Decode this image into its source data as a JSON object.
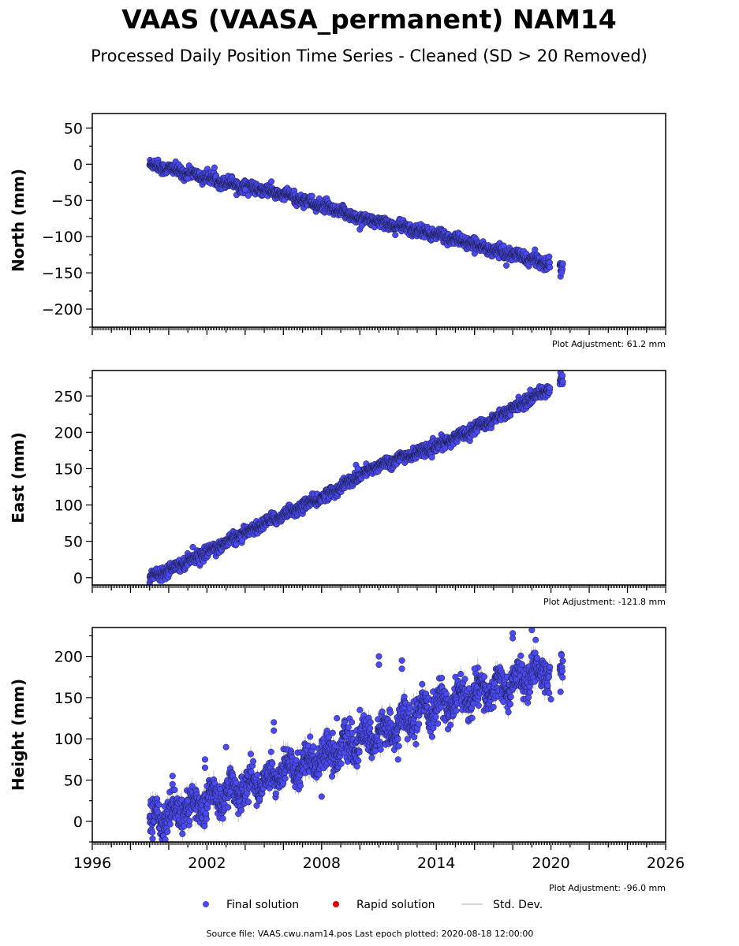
{
  "title": "VAAS (VAASA_permanent) NAM14",
  "subtitle": "Processed Daily Position Time Series - Cleaned (SD > 20 Removed)",
  "footer": "Source file: VAAS.cwu.nam14.pos  Last epoch plotted: 2020-08-18 12:00:00",
  "legend": [
    {
      "label": "Final solution",
      "color": "#4a4af0",
      "kind": "dot"
    },
    {
      "label": "Rapid solution",
      "color": "#dd0000",
      "kind": "dot"
    },
    {
      "label": "Std. Dev.",
      "color": "#c8c8c8",
      "kind": "line"
    }
  ],
  "colors": {
    "final": "#4a4af0",
    "edge": "#1a1a40",
    "std": "#bbbbbb"
  },
  "chart_data": [
    {
      "type": "scatter",
      "ylabel": "North (mm)",
      "xlim": [
        1996,
        2026
      ],
      "ylim": [
        -225,
        70
      ],
      "yticks": [
        50,
        0,
        -50,
        -100,
        -150,
        -200
      ],
      "ytick_labels": [
        "50",
        "0",
        "−50",
        "−100",
        "−150",
        "−200"
      ],
      "xticks": [
        1996,
        2002,
        2008,
        2014,
        2020,
        2026
      ],
      "xtick_labels": [],
      "adjustment": "Plot Adjustment: 61.2 mm",
      "series": [
        {
          "data_start": 1999.0,
          "data_end": 2020.63,
          "trend": [
            [
              1999.0,
              0
            ],
            [
              2003.0,
              -25
            ],
            [
              2006.5,
              -45
            ],
            [
              2009.8,
              -73
            ],
            [
              2014.0,
              -97
            ],
            [
              2017.5,
              -122
            ],
            [
              2020.0,
              -138
            ],
            [
              2020.63,
              -143
            ]
          ],
          "scatter": 4,
          "seasonal": 2,
          "std": 2,
          "outliers": [
            [
              2010.0,
              -90
            ],
            [
              2010.1,
              -85
            ],
            [
              2001.0,
              -20
            ],
            [
              2004.0,
              -35
            ],
            [
              2020.5,
              -155
            ],
            [
              2020.55,
              -150
            ]
          ]
        }
      ]
    },
    {
      "type": "scatter",
      "ylabel": "East (mm)",
      "xlim": [
        1996,
        2026
      ],
      "ylim": [
        -10,
        285
      ],
      "yticks": [
        250,
        200,
        150,
        100,
        50,
        0
      ],
      "ytick_labels": [
        "250",
        "200",
        "150",
        "100",
        "50",
        "0"
      ],
      "xticks": [
        1996,
        2002,
        2008,
        2014,
        2020,
        2026
      ],
      "xtick_labels": [],
      "adjustment": "Plot Adjustment: -121.8 mm",
      "series": [
        {
          "data_start": 1999.0,
          "data_end": 2020.63,
          "trend": [
            [
              1999.0,
              0
            ],
            [
              2002.0,
              35
            ],
            [
              2005.0,
              75
            ],
            [
              2008.0,
              110
            ],
            [
              2011.0,
              155
            ],
            [
              2014.0,
              180
            ],
            [
              2017.0,
              218
            ],
            [
              2020.0,
              262
            ],
            [
              2020.63,
              272
            ]
          ],
          "scatter": 4,
          "seasonal": 2,
          "std": 2,
          "outliers": [
            [
              2009.8,
              155
            ],
            [
              2009.9,
              150
            ],
            [
              2020.5,
              282
            ],
            [
              2020.6,
              278
            ]
          ]
        }
      ]
    },
    {
      "type": "scatter",
      "ylabel": "Height (mm)",
      "xlim": [
        1996,
        2026
      ],
      "ylim": [
        -25,
        235
      ],
      "yticks": [
        200,
        150,
        100,
        50,
        0
      ],
      "ytick_labels": [
        "200",
        "150",
        "100",
        "50",
        "0"
      ],
      "xticks": [
        1996,
        2002,
        2008,
        2014,
        2020,
        2026
      ],
      "xtick_labels": [
        "1996",
        "2002",
        "2008",
        "2014",
        "2020",
        "2026"
      ],
      "adjustment": "Plot Adjustment: -96.0 mm",
      "series": [
        {
          "data_start": 1999.0,
          "data_end": 2020.63,
          "trend": [
            [
              1999.0,
              0
            ],
            [
              2002.0,
              25
            ],
            [
              2005.0,
              50
            ],
            [
              2008.0,
              80
            ],
            [
              2011.0,
              105
            ],
            [
              2014.0,
              140
            ],
            [
              2017.0,
              160
            ],
            [
              2020.0,
              185
            ],
            [
              2020.63,
              195
            ]
          ],
          "scatter": 10,
          "seasonal": 10,
          "std": 8,
          "outliers": [
            [
              2000.2,
              55
            ],
            [
              2000.2,
              45
            ],
            [
              2001.9,
              75
            ],
            [
              2001.9,
              65
            ],
            [
              2003.0,
              90
            ],
            [
              2005.5,
              120
            ],
            [
              2005.5,
              110
            ],
            [
              2008.8,
              125
            ],
            [
              2009.2,
              120
            ],
            [
              2010.0,
              135
            ],
            [
              2011.0,
              200
            ],
            [
              2011.0,
              190
            ],
            [
              2012.2,
              195
            ],
            [
              2012.2,
              185
            ],
            [
              2015.0,
              175
            ],
            [
              2016.0,
              185
            ],
            [
              2018.0,
              228
            ],
            [
              2018.0,
              222
            ],
            [
              2019.0,
              232
            ],
            [
              2019.2,
              220
            ],
            [
              2020.0,
              148
            ],
            [
              2008.0,
              30
            ],
            [
              2012.0,
              75
            ],
            [
              2020.5,
              157
            ]
          ]
        }
      ]
    }
  ]
}
